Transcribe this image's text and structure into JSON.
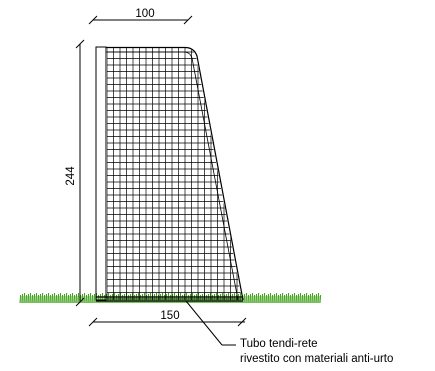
{
  "dimensions": {
    "top_width": "100",
    "height": "244",
    "base_width": "150"
  },
  "annotation": {
    "line1": "Tubo tendi-rete",
    "line2": "rivestito con materiali anti-urto"
  },
  "colors": {
    "ink": "#000000",
    "grass": "#3aa014",
    "background": "#ffffff"
  }
}
